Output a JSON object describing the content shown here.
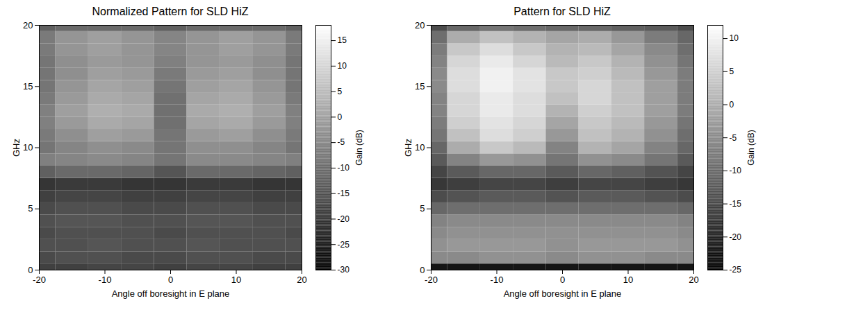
{
  "chart_data": [
    {
      "type": "heatmap",
      "title": "Normalized Pattern for SLD HiZ",
      "x_label": "Angle off boresight in E plane",
      "y_label": "GHz",
      "xlim": [
        -20,
        20
      ],
      "xticks": [
        -20,
        -10,
        0,
        10,
        20
      ],
      "ylim": [
        0,
        20
      ],
      "yticks": [
        0,
        5,
        10,
        15,
        20
      ],
      "x": [
        -20,
        -15,
        -10,
        -5,
        0,
        5,
        10,
        15,
        20
      ],
      "y": [
        0,
        1,
        2,
        3,
        4,
        5,
        6,
        7,
        8,
        9,
        10,
        11,
        12,
        13,
        14,
        15,
        16,
        17,
        18,
        19,
        20
      ],
      "cells": [
        [
          -18,
          -18,
          -17,
          -17,
          -18,
          -17,
          -17,
          -18,
          -18
        ],
        [
          -16,
          -15,
          -15,
          -16,
          -16,
          -15,
          -15,
          -16,
          -16
        ],
        [
          -15,
          -15,
          -14,
          -15,
          -15,
          -14,
          -15,
          -15,
          -15
        ],
        [
          -16,
          -15,
          -15,
          -15,
          -16,
          -15,
          -15,
          -15,
          -16
        ],
        [
          -15,
          -14,
          -14,
          -15,
          -15,
          -14,
          -14,
          -15,
          -15
        ],
        [
          -16,
          -15,
          -15,
          -16,
          -16,
          -15,
          -15,
          -16,
          -16
        ],
        [
          -18,
          -17,
          -17,
          -18,
          -18,
          -17,
          -17,
          -18,
          -18
        ],
        [
          -20,
          -19,
          -19,
          -20,
          -20,
          -19,
          -19,
          -20,
          -20
        ],
        [
          -12,
          -10,
          -10,
          -11,
          -14,
          -10,
          -10,
          -11,
          -12
        ],
        [
          -6,
          -5,
          -4,
          -5,
          -8,
          -4,
          -4,
          -5,
          -6
        ],
        [
          -8,
          -5,
          -3,
          -4,
          -8,
          -3,
          -3,
          -5,
          -8
        ],
        [
          -7,
          -3,
          0,
          -1,
          -8,
          -1,
          0,
          -3,
          -7
        ],
        [
          -6,
          -1,
          2,
          1,
          -9,
          1,
          2,
          -1,
          -6
        ],
        [
          -6,
          0,
          3,
          2,
          -9,
          2,
          3,
          0,
          -6
        ],
        [
          -7,
          -1,
          2,
          1,
          -9,
          1,
          2,
          -1,
          -7
        ],
        [
          -8,
          -2,
          1,
          0,
          -8,
          0,
          1,
          -2,
          -8
        ],
        [
          -8,
          -3,
          0,
          -1,
          -7,
          -1,
          0,
          -3,
          -8
        ],
        [
          -8,
          -3,
          -1,
          -2,
          -6,
          -2,
          -1,
          -3,
          -8
        ],
        [
          -7,
          -2,
          0,
          -2,
          -5,
          -2,
          0,
          -2,
          -7
        ],
        [
          -7,
          -2,
          0,
          -2,
          -5,
          -2,
          0,
          -2,
          -7
        ],
        [
          -12,
          -10,
          -10,
          -10,
          -12,
          -10,
          -10,
          -10,
          -12
        ]
      ],
      "colorbar_label": "Gain (dB)",
      "colorbar_range": [
        -30,
        18
      ],
      "colorbar_ticks": [
        -30,
        -25,
        -20,
        -15,
        -10,
        -5,
        0,
        5,
        10,
        15
      ]
    },
    {
      "type": "heatmap",
      "title": "Pattern for SLD HiZ",
      "x_label": "Angle off boresight in E plane",
      "y_label": "GHz",
      "xlim": [
        -20,
        20
      ],
      "xticks": [
        -20,
        -10,
        0,
        10,
        20
      ],
      "ylim": [
        0,
        20
      ],
      "yticks": [
        0,
        5,
        10,
        15,
        20
      ],
      "x": [
        -20,
        -15,
        -10,
        -5,
        0,
        5,
        10,
        15,
        20
      ],
      "y": [
        0,
        1,
        2,
        3,
        4,
        5,
        6,
        7,
        8,
        9,
        10,
        11,
        12,
        13,
        14,
        15,
        16,
        17,
        18,
        19,
        20
      ],
      "cells": [
        [
          -22,
          -22,
          -22,
          -22,
          -22,
          -22,
          -22,
          -22,
          -22
        ],
        [
          -5,
          -5,
          -4,
          -4,
          -5,
          -4,
          -4,
          -5,
          -5
        ],
        [
          -4,
          -3,
          -3,
          -3,
          -4,
          -3,
          -3,
          -3,
          -4
        ],
        [
          -5,
          -4,
          -4,
          -4,
          -4,
          -4,
          -4,
          -4,
          -5
        ],
        [
          -6,
          -5,
          -5,
          -5,
          -5,
          -5,
          -5,
          -5,
          -6
        ],
        [
          -10,
          -9,
          -9,
          -9,
          -9,
          -9,
          -9,
          -9,
          -10
        ],
        [
          -14,
          -13,
          -12,
          -12,
          -13,
          -12,
          -12,
          -13,
          -14
        ],
        [
          -17,
          -16,
          -15,
          -15,
          -16,
          -15,
          -15,
          -16,
          -17
        ],
        [
          -15,
          -12,
          -10,
          -10,
          -12,
          -10,
          -11,
          -13,
          -15
        ],
        [
          -12,
          -6,
          -3,
          -4,
          -8,
          -4,
          -5,
          -8,
          -12
        ],
        [
          -10,
          0,
          4,
          2,
          -6,
          1,
          -1,
          -6,
          -10
        ],
        [
          -8,
          3,
          7,
          5,
          -3,
          3,
          1,
          -4,
          -9
        ],
        [
          -7,
          5,
          8,
          6,
          -1,
          4,
          2,
          -3,
          -8
        ],
        [
          -6,
          6,
          9,
          7,
          1,
          5,
          3,
          -2,
          -7
        ],
        [
          -6,
          6,
          9,
          7,
          3,
          6,
          3,
          -2,
          -7
        ],
        [
          -5,
          7,
          10,
          8,
          4,
          6,
          3,
          -2,
          -7
        ],
        [
          -5,
          7,
          10,
          8,
          4,
          5,
          2,
          -3,
          -7
        ],
        [
          -6,
          6,
          9,
          6,
          2,
          4,
          1,
          -4,
          -8
        ],
        [
          -7,
          4,
          7,
          4,
          1,
          2,
          -1,
          -5,
          -9
        ],
        [
          -9,
          0,
          3,
          1,
          -1,
          0,
          -3,
          -7,
          -10
        ],
        [
          -14,
          -10,
          -8,
          -9,
          -10,
          -10,
          -11,
          -12,
          -14
        ]
      ],
      "colorbar_label": "Gain (dB)",
      "colorbar_range": [
        -25,
        12
      ],
      "colorbar_ticks": [
        -25,
        -20,
        -15,
        -10,
        -5,
        0,
        5,
        10
      ]
    }
  ]
}
